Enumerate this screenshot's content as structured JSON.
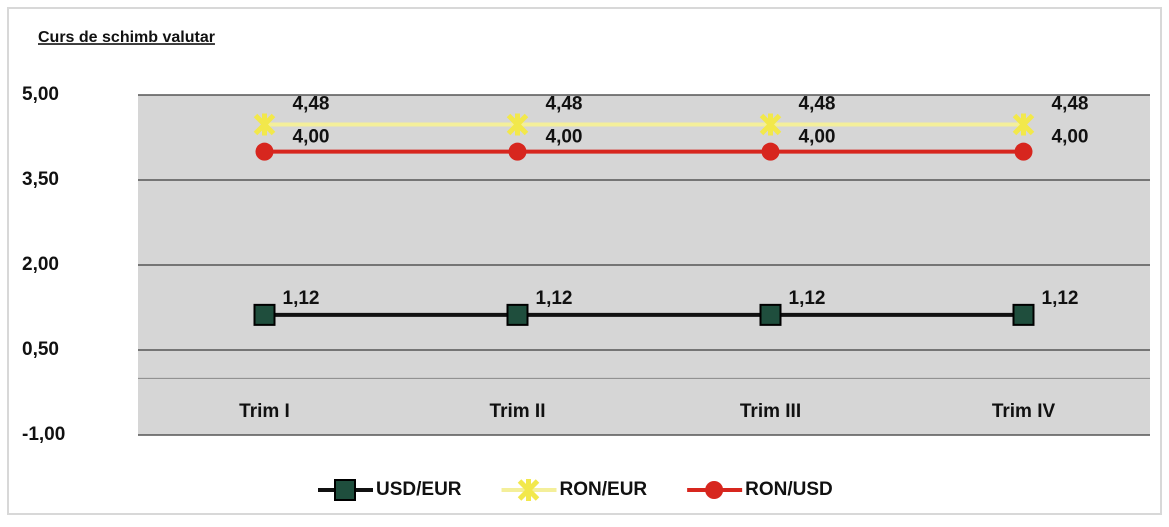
{
  "chart_data": {
    "type": "line",
    "title": "Curs de schimb valutar",
    "categories": [
      "Trim I",
      "Trim II",
      "Trim III",
      "Trim IV"
    ],
    "series": [
      {
        "name": "USD/EUR",
        "color": "#1f4e3d",
        "line_color": "#111111",
        "marker": "square",
        "values": [
          1.12,
          1.12,
          1.12,
          1.12
        ],
        "value_labels": [
          "1,12",
          "1,12",
          "1,12",
          "1,12"
        ]
      },
      {
        "name": "RON/EUR",
        "color": "#f2e84b",
        "line_color": "#f4ef9a",
        "marker": "star",
        "values": [
          4.48,
          4.48,
          4.48,
          4.48
        ],
        "value_labels": [
          "4,48",
          "4,48",
          "4,48",
          "4,48"
        ]
      },
      {
        "name": "RON/USD",
        "color": "#d7261e",
        "line_color": "#d7261e",
        "marker": "circle",
        "values": [
          4.0,
          4.0,
          4.0,
          4.0
        ],
        "value_labels": [
          "4,00",
          "4,00",
          "4,00",
          "4,00"
        ]
      }
    ],
    "ylim": [
      -1,
      5
    ],
    "yticks": [
      {
        "value": 5,
        "label": "5,00"
      },
      {
        "value": 3.5,
        "label": "3,50"
      },
      {
        "value": 2,
        "label": "2,00"
      },
      {
        "value": 0.5,
        "label": "0,50"
      },
      {
        "value": -1,
        "label": "-1,00"
      }
    ],
    "grid": true,
    "legend": "bottom"
  }
}
